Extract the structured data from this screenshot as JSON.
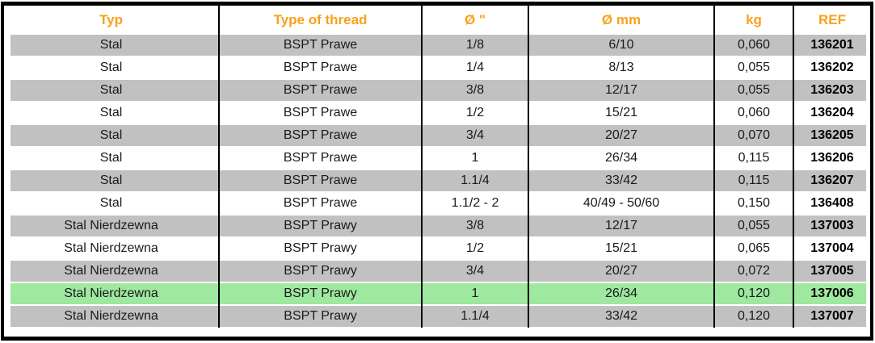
{
  "table": {
    "columns": [
      {
        "key": "typ",
        "label": "Typ"
      },
      {
        "key": "type_of_thread",
        "label": "Type of thread"
      },
      {
        "key": "diameter_inch",
        "label": "Ø \""
      },
      {
        "key": "diameter_mm",
        "label": "Ø mm"
      },
      {
        "key": "kg",
        "label": "kg"
      },
      {
        "key": "ref",
        "label": "REF"
      }
    ],
    "rows": [
      {
        "typ": "Stal",
        "type_of_thread": "BSPT Prawe",
        "diameter_inch": "1/8",
        "diameter_mm": "6/10",
        "kg": "0,060",
        "ref": "136201",
        "shade": "gray"
      },
      {
        "typ": "Stal",
        "type_of_thread": "BSPT Prawe",
        "diameter_inch": "1/4",
        "diameter_mm": "8/13",
        "kg": "0,055",
        "ref": "136202",
        "shade": "white"
      },
      {
        "typ": "Stal",
        "type_of_thread": "BSPT Prawe",
        "diameter_inch": "3/8",
        "diameter_mm": "12/17",
        "kg": "0,055",
        "ref": "136203",
        "shade": "gray"
      },
      {
        "typ": "Stal",
        "type_of_thread": "BSPT Prawe",
        "diameter_inch": "1/2",
        "diameter_mm": "15/21",
        "kg": "0,060",
        "ref": "136204",
        "shade": "white"
      },
      {
        "typ": "Stal",
        "type_of_thread": "BSPT Prawe",
        "diameter_inch": "3/4",
        "diameter_mm": "20/27",
        "kg": "0,070",
        "ref": "136205",
        "shade": "gray"
      },
      {
        "typ": "Stal",
        "type_of_thread": "BSPT Prawe",
        "diameter_inch": "1",
        "diameter_mm": "26/34",
        "kg": "0,115",
        "ref": "136206",
        "shade": "white"
      },
      {
        "typ": "Stal",
        "type_of_thread": "BSPT Prawe",
        "diameter_inch": "1.1/4",
        "diameter_mm": "33/42",
        "kg": "0,115",
        "ref": "136207",
        "shade": "gray"
      },
      {
        "typ": "Stal",
        "type_of_thread": "BSPT Prawe",
        "diameter_inch": "1.1/2 - 2",
        "diameter_mm": "40/49 - 50/60",
        "kg": "0,150",
        "ref": "136408",
        "shade": "white"
      },
      {
        "typ": "Stal Nierdzewna",
        "type_of_thread": "BSPT Prawy",
        "diameter_inch": "3/8",
        "diameter_mm": "12/17",
        "kg": "0,055",
        "ref": "137003",
        "shade": "gray"
      },
      {
        "typ": "Stal Nierdzewna",
        "type_of_thread": "BSPT Prawy",
        "diameter_inch": "1/2",
        "diameter_mm": "15/21",
        "kg": "0,065",
        "ref": "137004",
        "shade": "white"
      },
      {
        "typ": "Stal Nierdzewna",
        "type_of_thread": "BSPT Prawy",
        "diameter_inch": "3/4",
        "diameter_mm": "20/27",
        "kg": "0,072",
        "ref": "137005",
        "shade": "gray"
      },
      {
        "typ": "Stal Nierdzewna",
        "type_of_thread": "BSPT Prawy",
        "diameter_inch": "1",
        "diameter_mm": "26/34",
        "kg": "0,120",
        "ref": "137006",
        "shade": "green"
      },
      {
        "typ": "Stal Nierdzewna",
        "type_of_thread": "BSPT Prawy",
        "diameter_inch": "1.1/4",
        "diameter_mm": "33/42",
        "kg": "0,120",
        "ref": "137007",
        "shade": "gray"
      }
    ],
    "highlighted_ref": "137006"
  },
  "colors": {
    "header_text": "#F9A11B",
    "row_gray": "#C1C1C1",
    "row_green": "#9EE89F",
    "row_white": "#FFFFFF",
    "border": "#000000",
    "cell_text": "#1A1A1A",
    "ref_text": "#000000"
  }
}
